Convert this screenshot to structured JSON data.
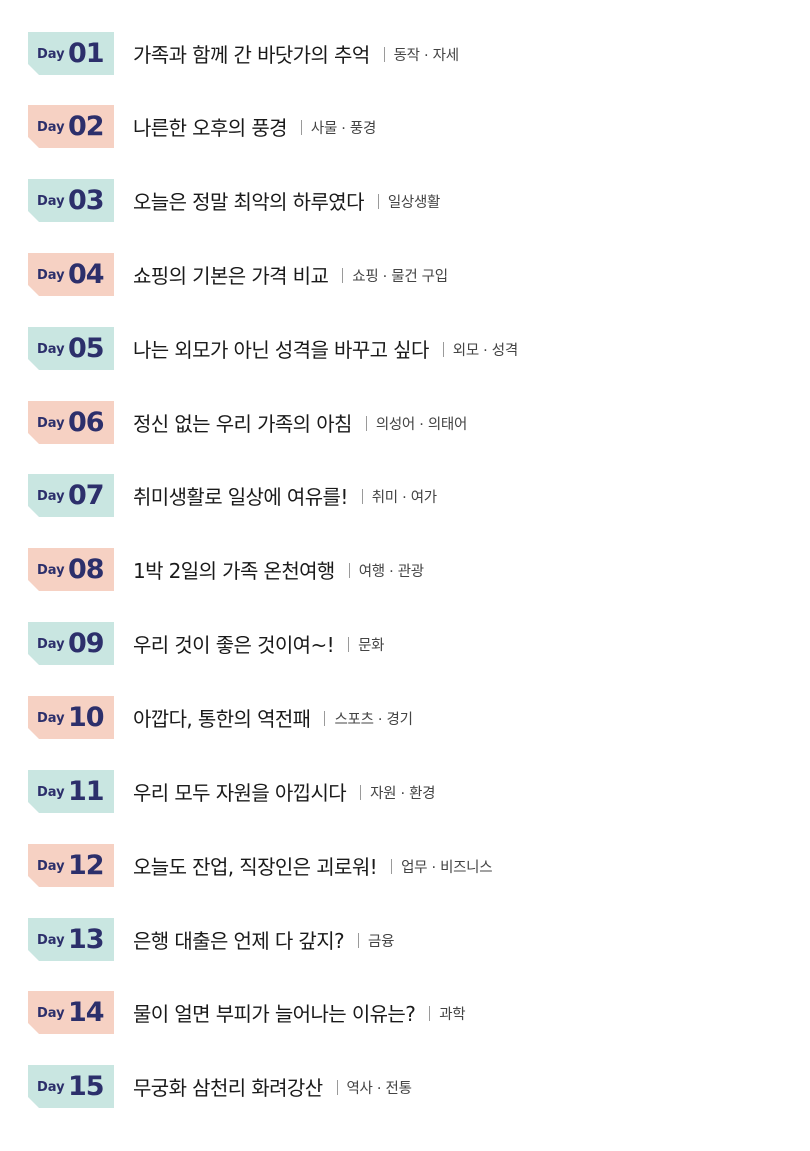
{
  "badge_colors": {
    "teal": "#c9e6e1",
    "peach": "#f6d1c3",
    "text": "#2c2f6b"
  },
  "entries": [
    {
      "day_label": "Day",
      "num": "01",
      "title": "가족과 함께 간 바닷가의 추억",
      "tag": "동작 · 자세"
    },
    {
      "day_label": "Day",
      "num": "02",
      "title": "나른한 오후의 풍경",
      "tag": "사물 · 풍경"
    },
    {
      "day_label": "Day",
      "num": "03",
      "title": "오늘은 정말 최악의 하루였다",
      "tag": "일상생활"
    },
    {
      "day_label": "Day",
      "num": "04",
      "title": "쇼핑의 기본은 가격 비교",
      "tag": "쇼핑 · 물건 구입"
    },
    {
      "day_label": "Day",
      "num": "05",
      "title": "나는 외모가 아닌 성격을 바꾸고 싶다",
      "tag": "외모 · 성격"
    },
    {
      "day_label": "Day",
      "num": "06",
      "title": "정신 없는 우리 가족의 아침",
      "tag": "의성어 · 의태어"
    },
    {
      "day_label": "Day",
      "num": "07",
      "title": "취미생활로 일상에 여유를!",
      "tag": "취미 · 여가"
    },
    {
      "day_label": "Day",
      "num": "08",
      "title": "1박 2일의 가족 온천여행",
      "tag": "여행 · 관광"
    },
    {
      "day_label": "Day",
      "num": "09",
      "title": "우리 것이 좋은 것이여~!",
      "tag": "문화"
    },
    {
      "day_label": "Day",
      "num": "10",
      "title": "아깝다, 통한의 역전패",
      "tag": "스포츠 · 경기"
    },
    {
      "day_label": "Day",
      "num": "11",
      "title": "우리 모두 자원을 아낍시다",
      "tag": "자원 · 환경"
    },
    {
      "day_label": "Day",
      "num": "12",
      "title": "오늘도 잔업, 직장인은 괴로워!",
      "tag": "업무 · 비즈니스"
    },
    {
      "day_label": "Day",
      "num": "13",
      "title": "은행 대출은 언제 다 갚지?",
      "tag": "금융"
    },
    {
      "day_label": "Day",
      "num": "14",
      "title": "물이 얼면 부피가 늘어나는 이유는?",
      "tag": "과학"
    },
    {
      "day_label": "Day",
      "num": "15",
      "title": "무궁화 삼천리 화려강산",
      "tag": "역사 · 전통"
    }
  ]
}
